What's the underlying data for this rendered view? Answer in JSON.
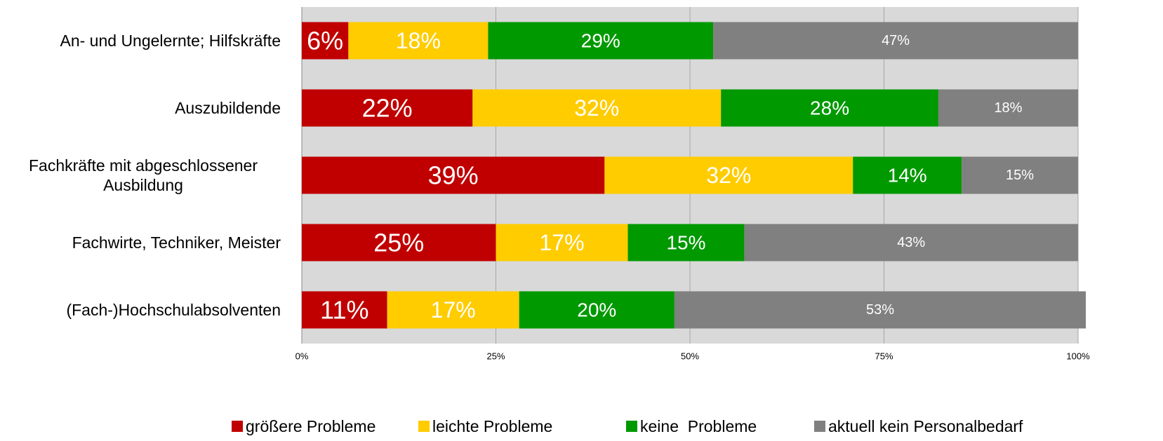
{
  "chart_data": {
    "type": "stacked_barh",
    "categories": [
      "An- und Ungelernte; Hilfskräfte",
      "Auszubildende",
      "Fachkräfte mit abgeschlossener Ausbildung",
      "Fachwirte, Techniker, Meister",
      "(Fach-)Hochschulabsolventen"
    ],
    "series": [
      {
        "name": "größere Probleme",
        "color": "#c00000",
        "values": [
          6,
          22,
          39,
          25,
          11
        ],
        "value_labels": [
          "6%",
          "22%",
          "39%",
          "25%",
          "11%"
        ]
      },
      {
        "name": "leichte Probleme",
        "color": "#ffcc00",
        "values": [
          18,
          32,
          32,
          17,
          17
        ],
        "value_labels": [
          "18%",
          "32%",
          "32%",
          "17%",
          "17%"
        ]
      },
      {
        "name": "keine  Probleme",
        "color": "#009900",
        "values": [
          29,
          28,
          14,
          15,
          20
        ],
        "value_labels": [
          "29%",
          "28%",
          "14%",
          "15%",
          "20%"
        ]
      },
      {
        "name": "aktuell kein Personalbedarf",
        "color": "#808080",
        "values": [
          47,
          18,
          15,
          43,
          53
        ],
        "value_labels": [
          "47%",
          "18%",
          "15%",
          "43%",
          "53%"
        ]
      }
    ],
    "xlim": [
      0,
      100
    ],
    "xticks": [
      {
        "value": 0,
        "label": "0%"
      },
      {
        "value": 25,
        "label": "25%"
      },
      {
        "value": 50,
        "label": "50%"
      },
      {
        "value": 75,
        "label": "75%"
      },
      {
        "value": 100,
        "label": "100%"
      }
    ],
    "grid": true,
    "legend": "bottom"
  }
}
